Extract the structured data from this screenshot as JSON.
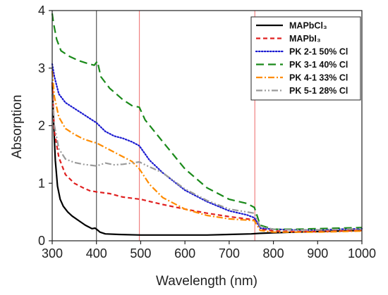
{
  "chart_data": {
    "type": "line",
    "xlabel": "Wavelength (nm)",
    "ylabel": "Absorption",
    "xlim": [
      300,
      1000
    ],
    "ylim": [
      0,
      4
    ],
    "xticks": [
      300,
      400,
      500,
      600,
      700,
      800,
      900,
      1000
    ],
    "yticks": [
      0,
      1,
      2,
      3,
      4
    ],
    "legend_position": "top-right",
    "vlines": [
      {
        "x": 400,
        "color": "#555555"
      },
      {
        "x": 497,
        "color": "#f08080"
      },
      {
        "x": 758,
        "color": "#f08080"
      }
    ],
    "series": [
      {
        "name": "MAPbCl₃",
        "color": "#000000",
        "dash": "solid",
        "x": [
          300,
          303,
          307,
          312,
          318,
          325,
          335,
          345,
          360,
          375,
          390,
          397,
          402,
          408,
          420,
          450,
          500,
          550,
          600,
          650,
          700,
          750,
          770,
          800,
          850,
          900,
          950,
          1000
        ],
        "y": [
          2.75,
          2.1,
          1.4,
          0.95,
          0.72,
          0.6,
          0.5,
          0.43,
          0.35,
          0.27,
          0.21,
          0.22,
          0.19,
          0.15,
          0.12,
          0.11,
          0.1,
          0.1,
          0.1,
          0.1,
          0.11,
          0.12,
          0.13,
          0.14,
          0.15,
          0.16,
          0.17,
          0.18
        ]
      },
      {
        "name": "MAPbI₃",
        "color": "#e02020",
        "dash": "dashed",
        "x": [
          300,
          305,
          315,
          330,
          350,
          370,
          385,
          400,
          430,
          460,
          500,
          550,
          600,
          650,
          700,
          740,
          760,
          775,
          800,
          850,
          900,
          950,
          1000
        ],
        "y": [
          2.75,
          1.9,
          1.45,
          1.15,
          1.0,
          0.92,
          0.87,
          0.85,
          0.82,
          0.76,
          0.72,
          0.63,
          0.55,
          0.48,
          0.42,
          0.38,
          0.36,
          0.2,
          0.17,
          0.16,
          0.16,
          0.17,
          0.18
        ]
      },
      {
        "name": "PK 2-1 50% Cl",
        "color": "#1a1ad0",
        "dash": "dotted",
        "x": [
          300,
          305,
          315,
          330,
          350,
          370,
          390,
          400,
          420,
          440,
          460,
          480,
          497,
          520,
          550,
          600,
          650,
          700,
          740,
          757,
          770,
          800,
          850,
          900,
          950,
          1000
        ],
        "y": [
          3.07,
          2.85,
          2.55,
          2.4,
          2.3,
          2.2,
          2.1,
          2.05,
          1.9,
          1.82,
          1.78,
          1.72,
          1.65,
          1.4,
          1.18,
          0.88,
          0.68,
          0.52,
          0.45,
          0.4,
          0.22,
          0.2,
          0.19,
          0.19,
          0.2,
          0.21
        ]
      },
      {
        "name": "PK 3-1 40% Cl",
        "color": "#1a8a1a",
        "dash": "longdash",
        "x": [
          300,
          303,
          310,
          320,
          340,
          360,
          380,
          395,
          402,
          410,
          430,
          460,
          480,
          497,
          510,
          550,
          600,
          650,
          700,
          740,
          757,
          770,
          800,
          850,
          900,
          950,
          1000
        ],
        "y": [
          3.95,
          3.78,
          3.5,
          3.3,
          3.2,
          3.13,
          3.08,
          3.05,
          3.12,
          2.85,
          2.65,
          2.45,
          2.35,
          2.32,
          2.1,
          1.72,
          1.25,
          0.92,
          0.72,
          0.65,
          0.58,
          0.27,
          0.2,
          0.2,
          0.21,
          0.22,
          0.23
        ]
      },
      {
        "name": "PK 4-1 33% Cl",
        "color": "#ff8c00",
        "dash": "dashdot",
        "x": [
          300,
          305,
          315,
          330,
          350,
          370,
          390,
          400,
          420,
          450,
          480,
          497,
          520,
          550,
          600,
          650,
          700,
          740,
          757,
          770,
          800,
          850,
          900,
          950,
          1000
        ],
        "y": [
          2.95,
          2.5,
          2.15,
          1.95,
          1.85,
          1.77,
          1.72,
          1.7,
          1.62,
          1.5,
          1.38,
          1.25,
          0.98,
          0.75,
          0.55,
          0.44,
          0.38,
          0.36,
          0.35,
          0.18,
          0.15,
          0.15,
          0.15,
          0.16,
          0.17
        ]
      },
      {
        "name": "PK 5-1 28% Cl",
        "color": "#9a9a9a",
        "dash": "dashdotdot",
        "x": [
          300,
          305,
          315,
          330,
          350,
          370,
          390,
          400,
          420,
          440,
          460,
          480,
          497,
          510,
          530,
          550,
          600,
          650,
          700,
          740,
          757,
          770,
          800,
          850,
          900,
          950,
          1000
        ],
        "y": [
          2.55,
          2.0,
          1.6,
          1.42,
          1.36,
          1.33,
          1.31,
          1.3,
          1.35,
          1.32,
          1.33,
          1.35,
          1.37,
          1.32,
          1.25,
          1.18,
          0.9,
          0.7,
          0.55,
          0.5,
          0.48,
          0.25,
          0.2,
          0.19,
          0.19,
          0.2,
          0.21
        ]
      }
    ]
  }
}
